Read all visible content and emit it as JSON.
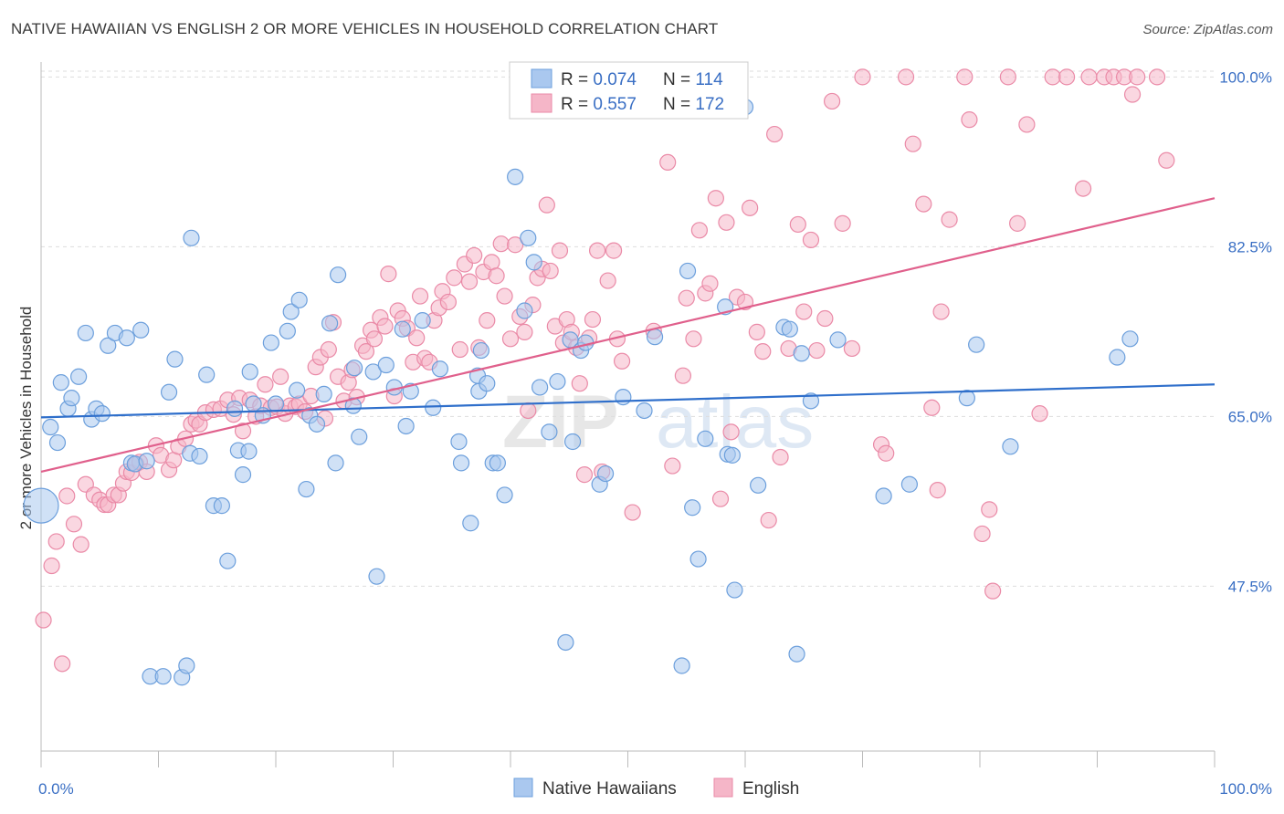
{
  "title": "NATIVE HAWAIIAN VS ENGLISH 2 OR MORE VEHICLES IN HOUSEHOLD CORRELATION CHART",
  "source": "Source: ZipAtlas.com",
  "watermark": "ZIPatlas",
  "colors": {
    "blue_fill": "#aac8ef",
    "blue_stroke": "#6c9fdc",
    "blue_line": "#2f6fcb",
    "pink_fill": "#f5b6c8",
    "pink_stroke": "#ea8aa7",
    "pink_line": "#e0608c",
    "axis_text": "#3a6fc4",
    "grid": "#dddddd"
  },
  "legend_box": {
    "rows": [
      {
        "r_label": "R = ",
        "r_value": "0.074",
        "n_label": "N = ",
        "n_value": "114",
        "color": "blue"
      },
      {
        "r_label": "R = ",
        "r_value": "0.557",
        "n_label": "N = ",
        "n_value": "172",
        "color": "pink"
      }
    ]
  },
  "bottom_legend": [
    "Native Hawaiians",
    "English"
  ],
  "chart_data": {
    "type": "scatter",
    "title": "NATIVE HAWAIIAN VS ENGLISH 2 OR MORE VEHICLES IN HOUSEHOLD CORRELATION CHART",
    "xlabel": "",
    "ylabel": "2 or more Vehicles in Household",
    "xlim": [
      0,
      100
    ],
    "ylim": [
      30.5,
      100.6
    ],
    "x_tick_labels": [
      "0.0%",
      "100.0%"
    ],
    "y_ticks": [
      47.5,
      65.0,
      82.5,
      100.0
    ],
    "y_tick_labels": [
      "47.5%",
      "65.0%",
      "82.5%",
      "100.0%"
    ],
    "grid": true,
    "legend_position": "top-center",
    "series": [
      {
        "name": "Native Hawaiians",
        "color": "blue",
        "r": 0.074,
        "n": 114,
        "trend": [
          [
            0,
            64.9
          ],
          [
            100,
            68.3
          ]
        ],
        "points": [
          [
            0.0,
            55.8
          ],
          [
            0.8,
            63.9
          ],
          [
            1.4,
            62.3
          ],
          [
            1.7,
            68.5
          ],
          [
            2.3,
            65.8
          ],
          [
            2.6,
            66.9
          ],
          [
            3.2,
            69.1
          ],
          [
            3.8,
            73.6
          ],
          [
            4.3,
            64.7
          ],
          [
            4.7,
            65.8
          ],
          [
            5.2,
            65.3
          ],
          [
            5.7,
            72.3
          ],
          [
            6.3,
            73.6
          ],
          [
            7.3,
            73.1
          ],
          [
            7.7,
            60.2
          ],
          [
            8.0,
            60.1
          ],
          [
            8.5,
            73.9
          ],
          [
            9.0,
            60.4
          ],
          [
            9.3,
            38.2
          ],
          [
            10.4,
            38.2
          ],
          [
            10.9,
            67.5
          ],
          [
            11.4,
            70.9
          ],
          [
            12.0,
            38.1
          ],
          [
            12.4,
            39.3
          ],
          [
            12.7,
            61.2
          ],
          [
            12.8,
            83.4
          ],
          [
            13.5,
            60.9
          ],
          [
            14.1,
            69.3
          ],
          [
            14.7,
            55.8
          ],
          [
            15.4,
            55.8
          ],
          [
            15.9,
            50.1
          ],
          [
            16.5,
            65.8
          ],
          [
            16.8,
            61.5
          ],
          [
            17.2,
            59.0
          ],
          [
            17.7,
            61.4
          ],
          [
            17.8,
            69.6
          ],
          [
            18.1,
            66.3
          ],
          [
            18.9,
            65.1
          ],
          [
            19.6,
            72.6
          ],
          [
            20.0,
            66.3
          ],
          [
            21.0,
            73.8
          ],
          [
            21.3,
            75.8
          ],
          [
            21.8,
            67.7
          ],
          [
            22.0,
            77.0
          ],
          [
            22.6,
            57.5
          ],
          [
            22.9,
            65.1
          ],
          [
            23.5,
            64.2
          ],
          [
            24.1,
            67.3
          ],
          [
            24.6,
            74.6
          ],
          [
            25.1,
            60.2
          ],
          [
            25.3,
            79.6
          ],
          [
            26.6,
            66.1
          ],
          [
            26.7,
            70.0
          ],
          [
            27.1,
            62.9
          ],
          [
            28.3,
            69.6
          ],
          [
            28.6,
            48.5
          ],
          [
            29.4,
            70.3
          ],
          [
            30.1,
            68.0
          ],
          [
            30.8,
            74.0
          ],
          [
            31.1,
            64.0
          ],
          [
            31.5,
            67.6
          ],
          [
            32.5,
            74.9
          ],
          [
            33.4,
            65.9
          ],
          [
            34.0,
            69.9
          ],
          [
            35.6,
            62.4
          ],
          [
            35.8,
            60.2
          ],
          [
            36.6,
            54.0
          ],
          [
            37.2,
            69.2
          ],
          [
            37.3,
            67.6
          ],
          [
            37.5,
            71.8
          ],
          [
            38.0,
            68.4
          ],
          [
            38.5,
            60.2
          ],
          [
            38.9,
            60.2
          ],
          [
            39.5,
            56.9
          ],
          [
            40.4,
            89.7
          ],
          [
            41.2,
            75.9
          ],
          [
            41.5,
            83.4
          ],
          [
            42.0,
            80.9
          ],
          [
            42.5,
            68.0
          ],
          [
            43.3,
            63.4
          ],
          [
            44.0,
            68.6
          ],
          [
            44.7,
            41.7
          ],
          [
            45.1,
            72.9
          ],
          [
            45.3,
            62.4
          ],
          [
            46.0,
            71.8
          ],
          [
            46.4,
            72.6
          ],
          [
            47.6,
            58.0
          ],
          [
            48.1,
            59.1
          ],
          [
            49.6,
            67.0
          ],
          [
            51.4,
            65.6
          ],
          [
            52.3,
            73.2
          ],
          [
            54.6,
            39.3
          ],
          [
            55.1,
            80.0
          ],
          [
            55.5,
            55.6
          ],
          [
            56.0,
            50.3
          ],
          [
            56.6,
            62.7
          ],
          [
            58.3,
            76.3
          ],
          [
            58.5,
            61.1
          ],
          [
            58.9,
            61.0
          ],
          [
            59.1,
            47.1
          ],
          [
            60.0,
            96.9
          ],
          [
            61.1,
            57.9
          ],
          [
            63.3,
            74.2
          ],
          [
            63.8,
            74.0
          ],
          [
            64.4,
            40.5
          ],
          [
            64.8,
            71.5
          ],
          [
            65.6,
            66.6
          ],
          [
            67.9,
            72.9
          ],
          [
            71.8,
            56.8
          ],
          [
            74.0,
            58.0
          ],
          [
            78.9,
            66.9
          ],
          [
            79.7,
            72.4
          ],
          [
            82.6,
            61.9
          ],
          [
            91.7,
            71.1
          ],
          [
            92.8,
            73.0
          ]
        ]
      },
      {
        "name": "English",
        "color": "pink",
        "r": 0.557,
        "n": 172,
        "trend": [
          [
            0,
            59.3
          ],
          [
            100,
            87.5
          ]
        ],
        "points": [
          [
            0.2,
            44.0
          ],
          [
            0.9,
            49.6
          ],
          [
            1.3,
            52.1
          ],
          [
            1.8,
            39.5
          ],
          [
            2.2,
            56.8
          ],
          [
            2.8,
            53.9
          ],
          [
            3.4,
            51.8
          ],
          [
            3.8,
            58.0
          ],
          [
            4.5,
            56.9
          ],
          [
            5.0,
            56.4
          ],
          [
            5.4,
            55.9
          ],
          [
            5.7,
            55.9
          ],
          [
            6.2,
            56.9
          ],
          [
            6.6,
            56.9
          ],
          [
            7.0,
            58.1
          ],
          [
            7.3,
            59.3
          ],
          [
            7.7,
            59.2
          ],
          [
            8.1,
            60.1
          ],
          [
            8.4,
            60.3
          ],
          [
            9.0,
            59.3
          ],
          [
            9.8,
            62.0
          ],
          [
            10.2,
            61.0
          ],
          [
            10.9,
            59.5
          ],
          [
            11.3,
            60.5
          ],
          [
            11.7,
            61.9
          ],
          [
            12.3,
            62.7
          ],
          [
            12.8,
            64.2
          ],
          [
            13.2,
            64.6
          ],
          [
            13.5,
            64.2
          ],
          [
            14.0,
            65.4
          ],
          [
            14.7,
            65.7
          ],
          [
            15.3,
            65.8
          ],
          [
            15.9,
            66.7
          ],
          [
            16.4,
            65.2
          ],
          [
            16.9,
            66.9
          ],
          [
            17.2,
            63.5
          ],
          [
            17.8,
            66.7
          ],
          [
            18.3,
            65.0
          ],
          [
            18.7,
            66.1
          ],
          [
            19.1,
            68.3
          ],
          [
            19.6,
            65.9
          ],
          [
            20.1,
            66.0
          ],
          [
            20.4,
            69.1
          ],
          [
            20.8,
            65.3
          ],
          [
            21.2,
            66.1
          ],
          [
            21.7,
            66.0
          ],
          [
            22.0,
            66.3
          ],
          [
            22.5,
            65.5
          ],
          [
            23.0,
            67.1
          ],
          [
            23.4,
            70.1
          ],
          [
            23.8,
            71.1
          ],
          [
            24.2,
            64.8
          ],
          [
            24.5,
            71.9
          ],
          [
            24.9,
            74.7
          ],
          [
            25.3,
            69.1
          ],
          [
            25.8,
            66.6
          ],
          [
            26.2,
            68.5
          ],
          [
            26.5,
            69.8
          ],
          [
            26.9,
            67.0
          ],
          [
            27.4,
            72.3
          ],
          [
            27.7,
            71.7
          ],
          [
            28.1,
            73.9
          ],
          [
            28.4,
            73.0
          ],
          [
            28.9,
            75.2
          ],
          [
            29.3,
            74.3
          ],
          [
            29.6,
            79.7
          ],
          [
            30.1,
            67.1
          ],
          [
            30.4,
            75.9
          ],
          [
            30.8,
            75.1
          ],
          [
            31.2,
            74.1
          ],
          [
            31.7,
            70.6
          ],
          [
            32.0,
            73.1
          ],
          [
            32.3,
            77.4
          ],
          [
            32.7,
            71.0
          ],
          [
            33.1,
            70.6
          ],
          [
            33.5,
            74.9
          ],
          [
            33.9,
            76.2
          ],
          [
            34.2,
            77.9
          ],
          [
            34.7,
            76.8
          ],
          [
            35.2,
            79.3
          ],
          [
            35.7,
            71.9
          ],
          [
            36.1,
            80.7
          ],
          [
            36.5,
            78.9
          ],
          [
            36.9,
            81.6
          ],
          [
            37.3,
            72.1
          ],
          [
            37.7,
            79.9
          ],
          [
            38.0,
            74.9
          ],
          [
            38.4,
            80.9
          ],
          [
            38.8,
            79.5
          ],
          [
            39.2,
            82.8
          ],
          [
            39.5,
            77.4
          ],
          [
            40.0,
            73.0
          ],
          [
            40.4,
            82.7
          ],
          [
            40.8,
            75.3
          ],
          [
            41.2,
            73.7
          ],
          [
            41.5,
            65.6
          ],
          [
            41.9,
            76.5
          ],
          [
            42.3,
            79.3
          ],
          [
            42.7,
            80.2
          ],
          [
            43.1,
            86.8
          ],
          [
            43.4,
            80.0
          ],
          [
            43.8,
            74.3
          ],
          [
            44.2,
            82.1
          ],
          [
            44.5,
            72.6
          ],
          [
            44.8,
            75.0
          ],
          [
            45.2,
            73.7
          ],
          [
            45.6,
            72.1
          ],
          [
            45.9,
            68.4
          ],
          [
            46.3,
            59.0
          ],
          [
            46.7,
            73.1
          ],
          [
            47.0,
            75.0
          ],
          [
            47.4,
            82.1
          ],
          [
            47.8,
            59.3
          ],
          [
            48.3,
            79.0
          ],
          [
            48.8,
            82.1
          ],
          [
            49.1,
            73.0
          ],
          [
            49.5,
            70.7
          ],
          [
            50.4,
            55.1
          ],
          [
            52.2,
            73.8
          ],
          [
            53.4,
            91.2
          ],
          [
            53.8,
            59.9
          ],
          [
            54.7,
            69.2
          ],
          [
            55.0,
            77.2
          ],
          [
            55.6,
            73.0
          ],
          [
            56.1,
            84.2
          ],
          [
            56.6,
            77.7
          ],
          [
            57.0,
            78.7
          ],
          [
            57.5,
            87.5
          ],
          [
            57.9,
            56.5
          ],
          [
            58.4,
            85.0
          ],
          [
            58.8,
            63.4
          ],
          [
            59.3,
            77.3
          ],
          [
            60.0,
            76.8
          ],
          [
            60.4,
            86.5
          ],
          [
            61.0,
            73.7
          ],
          [
            61.5,
            71.7
          ],
          [
            62.0,
            54.3
          ],
          [
            62.5,
            94.1
          ],
          [
            63.0,
            60.8
          ],
          [
            63.7,
            72.0
          ],
          [
            64.5,
            84.8
          ],
          [
            65.0,
            75.8
          ],
          [
            65.6,
            83.2
          ],
          [
            66.1,
            71.8
          ],
          [
            66.8,
            75.1
          ],
          [
            67.4,
            97.5
          ],
          [
            68.3,
            84.9
          ],
          [
            69.1,
            72.0
          ],
          [
            70.0,
            100.0
          ],
          [
            71.6,
            62.1
          ],
          [
            72.0,
            61.2
          ],
          [
            73.7,
            100.0
          ],
          [
            74.3,
            93.1
          ],
          [
            75.2,
            86.9
          ],
          [
            75.9,
            65.9
          ],
          [
            76.4,
            57.4
          ],
          [
            76.7,
            75.8
          ],
          [
            77.4,
            85.3
          ],
          [
            78.7,
            100.0
          ],
          [
            79.1,
            95.6
          ],
          [
            80.2,
            52.9
          ],
          [
            80.8,
            55.4
          ],
          [
            81.1,
            47.0
          ],
          [
            82.4,
            100.0
          ],
          [
            83.2,
            84.9
          ],
          [
            84.0,
            95.1
          ],
          [
            85.1,
            65.3
          ],
          [
            86.2,
            100.0
          ],
          [
            87.4,
            100.0
          ],
          [
            88.8,
            88.5
          ],
          [
            89.3,
            100.0
          ],
          [
            90.6,
            100.0
          ],
          [
            91.4,
            100.0
          ],
          [
            92.3,
            100.0
          ],
          [
            93.0,
            98.2
          ],
          [
            93.4,
            100.0
          ],
          [
            95.1,
            100.0
          ],
          [
            95.9,
            91.4
          ]
        ]
      }
    ]
  }
}
